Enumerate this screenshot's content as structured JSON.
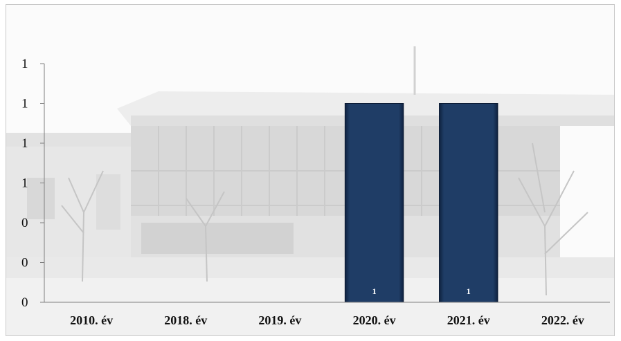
{
  "chart_data": {
    "type": "bar",
    "title": "",
    "xlabel": "",
    "ylabel": "",
    "categories": [
      "2010. év",
      "2018. év",
      "2019. év",
      "2020. év",
      "2021. év",
      "2022. év"
    ],
    "values": [
      0,
      0,
      0,
      1,
      1,
      0
    ],
    "data_labels": [
      "",
      "",
      "",
      "1",
      "1",
      ""
    ],
    "y_tick_labels": [
      "0",
      "0",
      "0",
      "1",
      "1",
      "1",
      "1"
    ],
    "ylim": [
      0,
      1.2
    ],
    "grid": false,
    "legend": "none",
    "bar_color": "#1f3d66",
    "background": "faded grayscale photo of a building with bare trees"
  }
}
